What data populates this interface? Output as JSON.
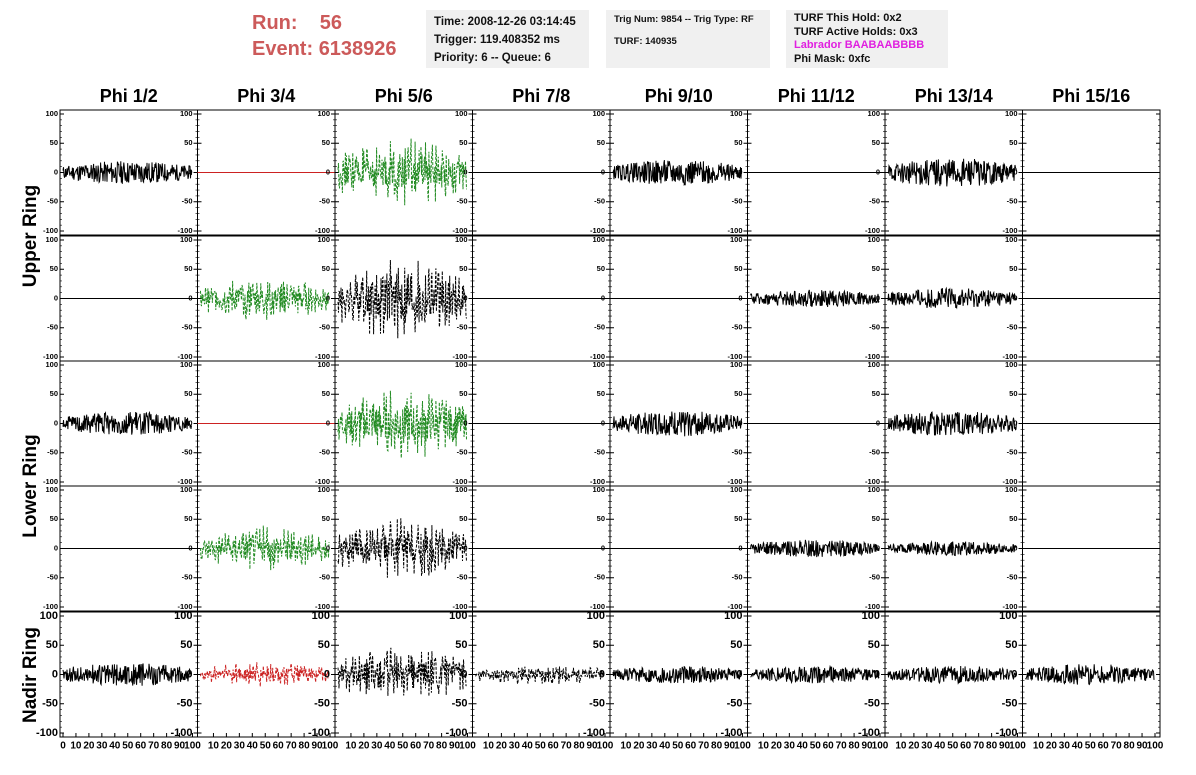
{
  "header": {
    "run_label": "Run:",
    "run_value": "56",
    "event_label": "Event:",
    "event_value": "6138926"
  },
  "info_time": {
    "line1": "Time: 2008-12-26 03:14:45",
    "line2": "Trigger: 119.408352 ms",
    "line3": "Priority: 6 -- Queue: 6"
  },
  "info_trig": {
    "line1": "Trig Num: 9854 -- Trig Type: RF",
    "line2": "TURF: 140935"
  },
  "info_turf": {
    "line1": "TURF This Hold: 0x2",
    "line2": "TURF Active Holds: 0x3",
    "line3": "Labrador BAABAABBBB",
    "line4": "Phi Mask: 0xfc"
  },
  "colors": {
    "black": "#000000",
    "green": "#228b22",
    "red": "#cc2222",
    "grid": "#000000"
  },
  "chart_data": {
    "type": "line",
    "columns": [
      "Phi 1/2",
      "Phi 3/4",
      "Phi 5/6",
      "Phi 7/8",
      "Phi 9/10",
      "Phi 11/12",
      "Phi 13/14",
      "Phi 15/16"
    ],
    "rings": [
      "Upper Ring",
      "Lower Ring",
      "Nadir Ring"
    ],
    "ylim": [
      -100,
      100
    ],
    "xlim": [
      0,
      100
    ],
    "y_ticks": [
      100,
      50,
      0,
      -50,
      -100
    ],
    "x_ticks_first": [
      "0",
      "10",
      "20",
      "30",
      "40",
      "50",
      "60",
      "70",
      "80",
      "90",
      "100"
    ],
    "x_ticks_other": [
      "10",
      "20",
      "30",
      "40",
      "50",
      "60",
      "70",
      "80",
      "90",
      "100"
    ],
    "panels": [
      {
        "row": 0,
        "col": 0,
        "style": "noise",
        "color": "black",
        "amp": 20
      },
      {
        "row": 0,
        "col": 1,
        "style": "flat",
        "color": "red",
        "amp": 0
      },
      {
        "row": 0,
        "col": 2,
        "style": "dashed",
        "color": "green",
        "amp": 60
      },
      {
        "row": 0,
        "col": 3,
        "style": "flat",
        "color": "black",
        "amp": 0
      },
      {
        "row": 0,
        "col": 4,
        "style": "noise",
        "color": "black",
        "amp": 22
      },
      {
        "row": 0,
        "col": 5,
        "style": "flat",
        "color": "black",
        "amp": 0
      },
      {
        "row": 0,
        "col": 6,
        "style": "noise",
        "color": "black",
        "amp": 25
      },
      {
        "row": 0,
        "col": 7,
        "style": "flat",
        "color": "black",
        "amp": 0
      },
      {
        "row": 1,
        "col": 0,
        "style": "flat",
        "color": "black",
        "amp": 0
      },
      {
        "row": 1,
        "col": 1,
        "style": "dashed",
        "color": "green",
        "amp": 40
      },
      {
        "row": 1,
        "col": 2,
        "style": "dashed",
        "color": "black",
        "amp": 75
      },
      {
        "row": 1,
        "col": 3,
        "style": "flat",
        "color": "black",
        "amp": 0
      },
      {
        "row": 1,
        "col": 4,
        "style": "flat",
        "color": "black",
        "amp": 0
      },
      {
        "row": 1,
        "col": 5,
        "style": "noise",
        "color": "black",
        "amp": 15
      },
      {
        "row": 1,
        "col": 6,
        "style": "noise",
        "color": "black",
        "amp": 18
      },
      {
        "row": 1,
        "col": 7,
        "style": "flat",
        "color": "black",
        "amp": 0
      },
      {
        "row": 2,
        "col": 0,
        "style": "noise",
        "color": "black",
        "amp": 20
      },
      {
        "row": 2,
        "col": 1,
        "style": "flat",
        "color": "red",
        "amp": 0
      },
      {
        "row": 2,
        "col": 2,
        "style": "dashed",
        "color": "green",
        "amp": 65
      },
      {
        "row": 2,
        "col": 3,
        "style": "flat",
        "color": "black",
        "amp": 0
      },
      {
        "row": 2,
        "col": 4,
        "style": "noise",
        "color": "black",
        "amp": 22
      },
      {
        "row": 2,
        "col": 5,
        "style": "flat",
        "color": "black",
        "amp": 0
      },
      {
        "row": 2,
        "col": 6,
        "style": "noise",
        "color": "black",
        "amp": 22
      },
      {
        "row": 2,
        "col": 7,
        "style": "flat",
        "color": "black",
        "amp": 0
      },
      {
        "row": 3,
        "col": 0,
        "style": "flat",
        "color": "black",
        "amp": 0
      },
      {
        "row": 3,
        "col": 1,
        "style": "dashed",
        "color": "green",
        "amp": 40
      },
      {
        "row": 3,
        "col": 2,
        "style": "dashed",
        "color": "black",
        "amp": 55
      },
      {
        "row": 3,
        "col": 3,
        "style": "flat",
        "color": "black",
        "amp": 0
      },
      {
        "row": 3,
        "col": 4,
        "style": "flat",
        "color": "black",
        "amp": 0
      },
      {
        "row": 3,
        "col": 5,
        "style": "noise",
        "color": "black",
        "amp": 15
      },
      {
        "row": 3,
        "col": 6,
        "style": "noise",
        "color": "black",
        "amp": 12
      },
      {
        "row": 3,
        "col": 7,
        "style": "flat",
        "color": "black",
        "amp": 0
      },
      {
        "row": 4,
        "col": 0,
        "style": "noise",
        "color": "black",
        "amp": 20
      },
      {
        "row": 4,
        "col": 1,
        "style": "dashed",
        "color": "red",
        "amp": 22
      },
      {
        "row": 4,
        "col": 2,
        "style": "dashed",
        "color": "black",
        "amp": 50
      },
      {
        "row": 4,
        "col": 3,
        "style": "dashed",
        "color": "black",
        "amp": 18
      },
      {
        "row": 4,
        "col": 4,
        "style": "noise",
        "color": "black",
        "amp": 15
      },
      {
        "row": 4,
        "col": 5,
        "style": "noise",
        "color": "black",
        "amp": 15
      },
      {
        "row": 4,
        "col": 6,
        "style": "noise",
        "color": "black",
        "amp": 15
      },
      {
        "row": 4,
        "col": 7,
        "style": "noise",
        "color": "black",
        "amp": 18
      }
    ]
  }
}
